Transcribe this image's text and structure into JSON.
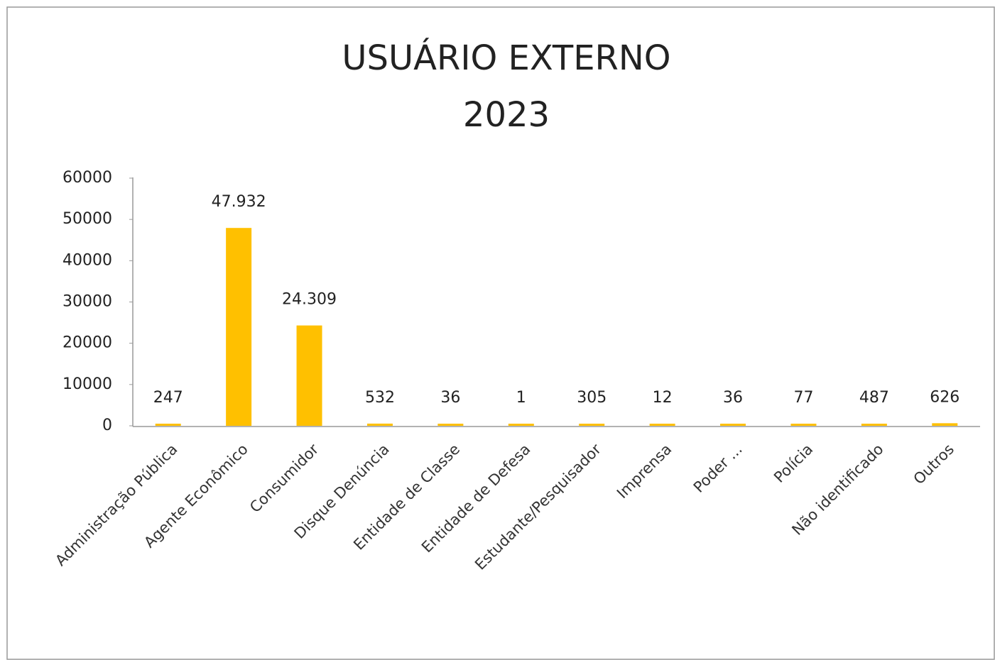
{
  "chart_data": {
    "type": "bar",
    "title": "USUÁRIO EXTERNO",
    "subtitle": "2023",
    "categories": [
      "Administração Pública",
      "Agente Econômico",
      "Consumidor",
      "Disque Denúncia",
      "Entidade de Classe",
      "Entidade de Defesa",
      "Estudante/Pesquisador",
      "Imprensa",
      "Poder ...",
      "Polícia",
      "Não identificado",
      "Outros"
    ],
    "values": [
      247,
      47932,
      24309,
      532,
      36,
      1,
      305,
      12,
      36,
      77,
      487,
      626
    ],
    "value_labels": [
      "247",
      "47.932",
      "24.309",
      "532",
      "36",
      "1",
      "305",
      "12",
      "36",
      "77",
      "487",
      "626"
    ],
    "color": "#ffc000",
    "ylim": [
      0,
      60000
    ],
    "yticks": [
      0,
      10000,
      20000,
      30000,
      40000,
      50000,
      60000
    ],
    "grid": false
  }
}
